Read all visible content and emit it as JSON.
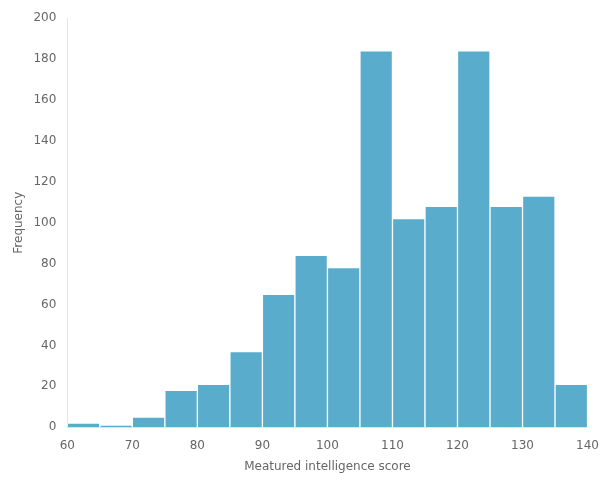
{
  "chart_data": {
    "type": "histogram",
    "bins": [
      60,
      65,
      70,
      75,
      80,
      85,
      90,
      95,
      100,
      105,
      110,
      115,
      120,
      125,
      130,
      135,
      140
    ],
    "values": [
      2,
      1,
      5,
      18,
      21,
      37,
      65,
      84,
      78,
      184,
      102,
      108,
      184,
      108,
      113,
      21
    ],
    "color": "#5aaccc",
    "xlabel": "Meatured intelligence score",
    "ylabel": "Frequency",
    "xlim": [
      60,
      140
    ],
    "ylim": [
      0,
      200
    ],
    "xticks": [
      60,
      70,
      80,
      90,
      100,
      110,
      120,
      130,
      140
    ],
    "yticks": [
      0,
      20,
      40,
      60,
      80,
      100,
      120,
      140,
      160,
      180,
      200
    ],
    "grid": false
  }
}
